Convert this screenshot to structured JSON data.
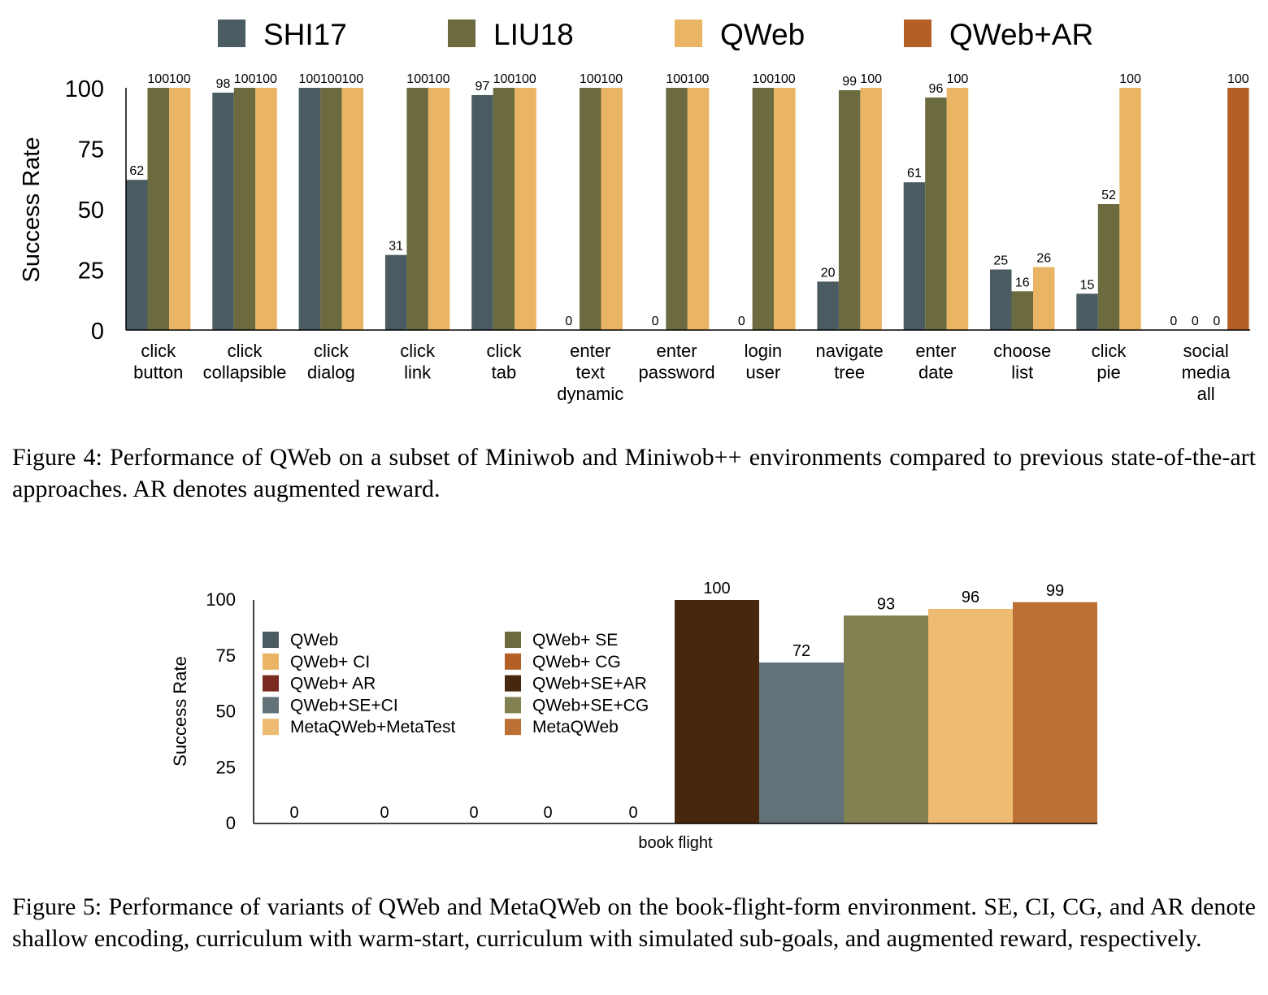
{
  "colors": {
    "shi17": "#4a5b62",
    "liu18": "#6b6b3f",
    "qweb": "#e9b463",
    "qweb_ar": "#b35f26"
  },
  "chart_data": [
    {
      "type": "bar",
      "ylabel": "Success Rate",
      "ylim": [
        0,
        100
      ],
      "yticks": [
        "0",
        "25",
        "50",
        "75",
        "100"
      ],
      "legend_position": "top",
      "categories": [
        [
          "click",
          "button"
        ],
        [
          "click",
          "collapsible"
        ],
        [
          "click",
          "dialog"
        ],
        [
          "click",
          "link"
        ],
        [
          "click",
          "tab"
        ],
        [
          "enter",
          "text",
          "dynamic"
        ],
        [
          "enter",
          "password"
        ],
        [
          "login",
          "user"
        ],
        [
          "navigate",
          "tree"
        ],
        [
          "enter",
          "date"
        ],
        [
          "choose",
          "list"
        ],
        [
          "click",
          "pie"
        ],
        [
          "social",
          "media",
          "all"
        ]
      ],
      "series": [
        {
          "name": "SHI17",
          "color": "#4a5b62",
          "values": [
            62,
            98,
            100,
            31,
            97,
            0,
            0,
            0,
            20,
            61,
            25,
            15,
            0
          ]
        },
        {
          "name": "LIU18",
          "color": "#6b6b3f",
          "values": [
            100,
            100,
            100,
            100,
            100,
            100,
            100,
            100,
            99,
            96,
            16,
            52,
            0
          ]
        },
        {
          "name": "QWeb",
          "color": "#e9b463",
          "values": [
            100,
            100,
            100,
            100,
            100,
            100,
            100,
            100,
            100,
            100,
            26,
            100,
            0
          ]
        },
        {
          "name": "QWeb+AR",
          "color": "#b35f26",
          "values": [
            null,
            null,
            null,
            null,
            null,
            null,
            null,
            null,
            null,
            null,
            null,
            null,
            100
          ]
        }
      ],
      "value_labels": [
        [
          "62",
          "100",
          "100"
        ],
        [
          "98",
          "100",
          "100"
        ],
        [
          "100",
          "100",
          "100"
        ],
        [
          "31",
          "100",
          "100"
        ],
        [
          "97",
          "100",
          "100"
        ],
        [
          "0",
          "100",
          "100"
        ],
        [
          "0",
          "100",
          "100"
        ],
        [
          "0",
          "100",
          "100"
        ],
        [
          "20",
          "99",
          "100"
        ],
        [
          "61",
          "96",
          "100"
        ],
        [
          "25",
          "16",
          "26"
        ],
        [
          "15",
          "52",
          "100"
        ],
        [
          "0",
          "0",
          "0",
          "100"
        ]
      ]
    },
    {
      "type": "bar",
      "ylabel": "Success Rate",
      "xlabel": "book flight",
      "ylim": [
        0,
        100
      ],
      "yticks": [
        "0",
        "25",
        "50",
        "75",
        "100"
      ],
      "legend_position": "top-left",
      "series": [
        {
          "name": "QWeb",
          "color": "#4a5b62",
          "value": 0
        },
        {
          "name": "QWeb+ SE",
          "color": "#6b6b3f",
          "value": 0
        },
        {
          "name": "QWeb+ CI",
          "color": "#e9b463",
          "value": 0
        },
        {
          "name": "QWeb+ CG",
          "color": "#b35f26",
          "value": 0
        },
        {
          "name": "QWeb+ AR",
          "color": "#7c2b22",
          "value": 0
        },
        {
          "name": "QWeb+SE+AR",
          "color": "#47280e",
          "value": 100
        },
        {
          "name": "QWeb+SE+CI",
          "color": "#637278",
          "value": 72
        },
        {
          "name": "QWeb+SE+CG",
          "color": "#818152",
          "value": 93
        },
        {
          "name": "MetaQWeb+MetaTest",
          "color": "#edbc72",
          "value": 96
        },
        {
          "name": "MetaQWeb",
          "color": "#bb7036",
          "value": 99
        }
      ],
      "legend_columns": [
        [
          "QWeb",
          "QWeb+ CI",
          "QWeb+ AR",
          "QWeb+SE+CI",
          "MetaQWeb+MetaTest"
        ],
        [
          "QWeb+ SE",
          "QWeb+ CG",
          "QWeb+SE+AR",
          "QWeb+SE+CG",
          "MetaQWeb"
        ]
      ]
    }
  ],
  "captions": {
    "fig4": "Figure 4: Performance of QWeb on a subset of Miniwob and Miniwob++ environments compared to previous state-of-the-art approaches. AR denotes augmented reward.",
    "fig5": "Figure 5: Performance of variants of QWeb and MetaQWeb on the book-flight-form environment. SE, CI, CG, and AR denote shallow encoding, curriculum with warm-start, curriculum with simulated sub-goals, and augmented reward, respectively."
  }
}
